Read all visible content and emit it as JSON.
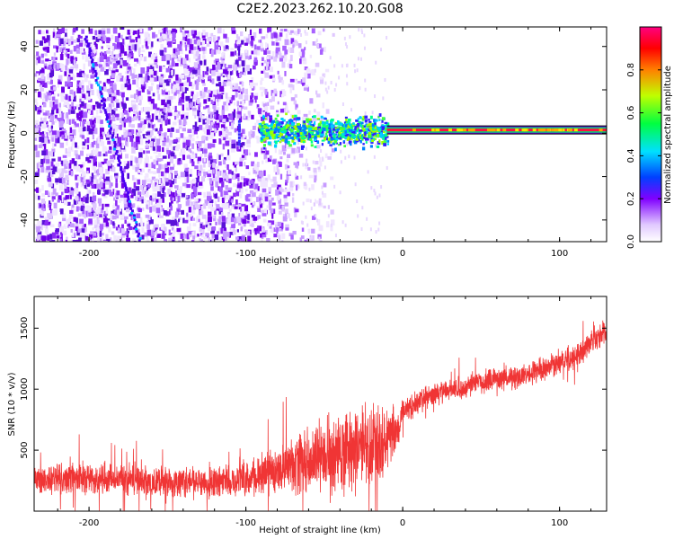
{
  "title": "C2E2.2023.262.10.20.G08",
  "colors": {
    "snr_line": "#f03535",
    "axes": "#000000",
    "spec_low": "#8000ff",
    "spec_mid": "#00ff60",
    "spec_high": "#ff0040"
  },
  "chart_data": [
    {
      "type": "heatmap",
      "name": "spectrogram",
      "xlabel": "Height of straight line (km)",
      "ylabel": "Frequency (Hz)",
      "xlim": [
        -235,
        130
      ],
      "ylim": [
        -50,
        49
      ],
      "xticks": [
        -200,
        -100,
        0,
        100
      ],
      "xtick_labels": [
        "-200",
        "-100",
        "0",
        "100"
      ],
      "yticks": [
        -40,
        -20,
        0,
        20,
        40
      ],
      "ytick_labels": [
        "-40",
        "-20",
        "0",
        "20",
        "40"
      ],
      "colorbar": {
        "label": "Normalized spectral amplitude",
        "range": [
          0,
          1
        ],
        "ticks": [
          0.0,
          0.2,
          0.4,
          0.6,
          0.8
        ],
        "tick_labels": [
          "0.0",
          "0.2",
          "0.4",
          "0.6",
          "0.8"
        ]
      },
      "features": {
        "noise_region_x": [
          -235,
          -75
        ],
        "tone_x": [
          -10,
          130
        ],
        "tone_freq": 1.5,
        "scatter_band_x": [
          -92,
          -10
        ],
        "streak": [
          [
            -203,
            45
          ],
          [
            -168,
            -50
          ]
        ]
      }
    },
    {
      "type": "line",
      "name": "snr",
      "xlabel": "Height of straight line (km)",
      "ylabel": "SNR (10 * v/v)",
      "xlim": [
        -235,
        130
      ],
      "ylim": [
        0,
        1760
      ],
      "xticks": [
        -200,
        -100,
        0,
        100
      ],
      "xtick_labels": [
        "-200",
        "-100",
        "0",
        "100"
      ],
      "yticks": [
        500,
        1000,
        1500
      ],
      "ytick_labels": [
        "500",
        "1000",
        "1500"
      ],
      "series": [
        {
          "x": [
            -235,
            -200,
            -150,
            -110,
            -90,
            -70,
            -50,
            -30,
            -15,
            -5,
            0,
            20,
            50,
            80,
            110,
            130
          ],
          "values": [
            260,
            270,
            240,
            240,
            300,
            380,
            460,
            520,
            520,
            620,
            820,
            960,
            1060,
            1120,
            1270,
            1480
          ],
          "spread": [
            140,
            160,
            140,
            150,
            200,
            300,
            350,
            420,
            420,
            280,
            130,
            110,
            110,
            110,
            120,
            130
          ]
        }
      ]
    }
  ]
}
